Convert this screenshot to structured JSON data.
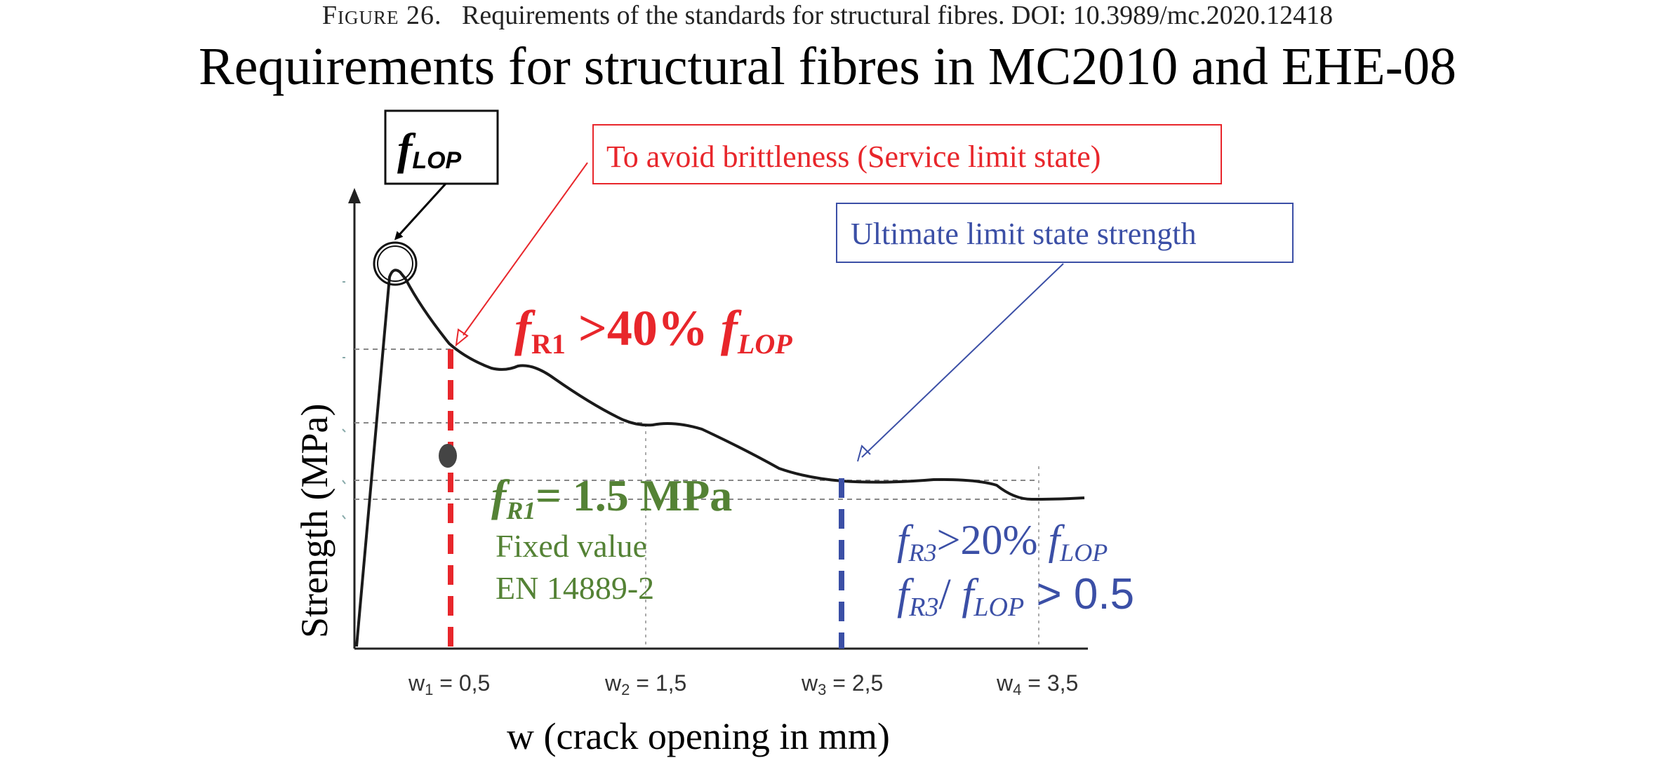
{
  "caption": {
    "label": "Figure 26.",
    "text": "Requirements of the standards for structural fibres. DOI: 10.3989/mc.2020.12418"
  },
  "title": "Requirements for structural fibres in MC2010 and EHE-08",
  "axes": {
    "y_label": "Strength (MPa)",
    "x_label": "w (crack opening in mm)",
    "x_ticks": [
      {
        "var": "w",
        "sub": "1",
        "value": "0,5"
      },
      {
        "var": "w",
        "sub": "2",
        "value": "1,5"
      },
      {
        "var": "w",
        "sub": "3",
        "value": "2,5"
      },
      {
        "var": "w",
        "sub": "4",
        "value": "3,5"
      }
    ]
  },
  "callouts": {
    "flop": {
      "f": "f",
      "sub": "LOP"
    },
    "service": "To avoid brittleness (Service limit state)",
    "ultimate": "Ultimate limit state strength"
  },
  "labels": {
    "fr1_req": {
      "f": "f",
      "sub": "R1",
      "rest": " >40% ",
      "f2": "f",
      "sub2": "LOP"
    },
    "fr1_val": {
      "f": "f",
      "sub": "R1",
      "rest": "= 1.5 MPa"
    },
    "fixed_value": "Fixed value",
    "en_standard": "EN 14889-2",
    "fr3_req": {
      "f": "f",
      "sub": "R3",
      "rest": ">20% ",
      "f2": "f",
      "sub2": "LOP"
    },
    "fr3_ratio": {
      "f": "f",
      "sub": "R3",
      "mid": "/ ",
      "f2": "f",
      "sub2": "LOP",
      "rest": "  >  0.5"
    }
  },
  "colors": {
    "red": "#e8262b",
    "blue": "#3b4fa6",
    "green": "#548235",
    "curve": "#1a1a1a",
    "grid": "#9a9a9a"
  }
}
